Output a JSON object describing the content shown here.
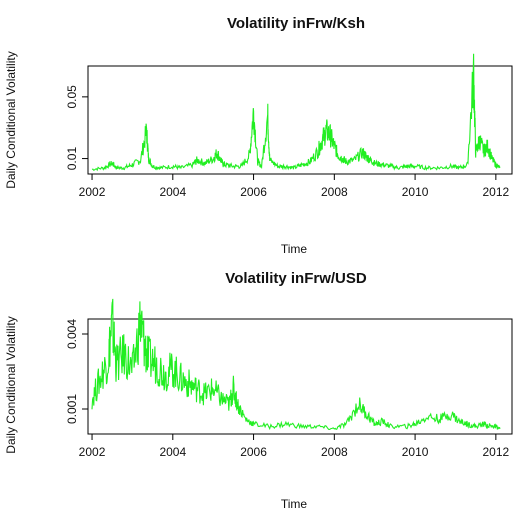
{
  "chart_data": [
    {
      "type": "line",
      "title": "Volatility inFrw/Ksh",
      "xlabel": "Time",
      "ylabel": "Daily Conditional Volatility",
      "xlim": [
        2001.9,
        2012.4
      ],
      "ylim": [
        0.0,
        0.07
      ],
      "x_ticks": [
        2002,
        2004,
        2006,
        2008,
        2010,
        2012
      ],
      "y_ticks": [
        0.01,
        0.05
      ],
      "y_tick_labels": [
        "0.01",
        "0.05"
      ],
      "line_color": "#22ee22",
      "series": [
        {
          "x": [
            2002.0,
            2002.3,
            2002.5,
            2002.6,
            2002.8,
            2003.0,
            2003.2,
            2003.35,
            2003.4,
            2003.5,
            2003.7,
            2004.0,
            2004.2,
            2004.5,
            2004.6,
            2004.8,
            2005.0,
            2005.1,
            2005.2,
            2005.3,
            2005.5,
            2005.7,
            2005.9,
            2006.0,
            2006.1,
            2006.2,
            2006.35,
            2006.4,
            2006.6,
            2006.8,
            2007.0,
            2007.2,
            2007.4,
            2007.6,
            2007.7,
            2007.8,
            2007.9,
            2008.0,
            2008.1,
            2008.2,
            2008.3,
            2008.5,
            2008.7,
            2008.8,
            2008.9,
            2009.0,
            2009.2,
            2009.4,
            2009.6,
            2009.8,
            2010.0,
            2010.3,
            2010.6,
            2010.9,
            2011.1,
            2011.3,
            2011.45,
            2011.5,
            2011.6,
            2011.7,
            2011.8,
            2011.9,
            2012.0,
            2012.1
          ],
          "y": [
            0.003,
            0.004,
            0.007,
            0.004,
            0.004,
            0.006,
            0.009,
            0.028,
            0.01,
            0.005,
            0.004,
            0.005,
            0.004,
            0.006,
            0.009,
            0.007,
            0.01,
            0.014,
            0.008,
            0.006,
            0.005,
            0.005,
            0.012,
            0.041,
            0.008,
            0.005,
            0.038,
            0.009,
            0.005,
            0.005,
            0.004,
            0.006,
            0.008,
            0.015,
            0.022,
            0.028,
            0.025,
            0.018,
            0.012,
            0.01,
            0.008,
            0.009,
            0.014,
            0.011,
            0.009,
            0.007,
            0.006,
            0.005,
            0.004,
            0.005,
            0.005,
            0.004,
            0.004,
            0.005,
            0.004,
            0.006,
            0.065,
            0.014,
            0.022,
            0.015,
            0.018,
            0.01,
            0.006,
            0.004
          ]
        }
      ]
    },
    {
      "type": "line",
      "title": "Volatility inFrw/USD",
      "xlabel": "Time",
      "ylabel": "Daily Conditional Volatility",
      "xlim": [
        2001.9,
        2012.4
      ],
      "ylim": [
        0.0,
        0.0046
      ],
      "x_ticks": [
        2002,
        2004,
        2006,
        2008,
        2010,
        2012
      ],
      "y_ticks": [
        0.001,
        0.004
      ],
      "y_tick_labels": [
        "0.001",
        "0.004"
      ],
      "line_color": "#22ee22",
      "series": [
        {
          "x": [
            2002.0,
            2002.2,
            2002.4,
            2002.5,
            2002.6,
            2002.8,
            2003.0,
            2003.2,
            2003.3,
            2003.4,
            2003.6,
            2003.8,
            2004.0,
            2004.2,
            2004.4,
            2004.6,
            2004.8,
            2005.0,
            2005.2,
            2005.4,
            2005.5,
            2005.6,
            2005.8,
            2006.0,
            2006.4,
            2006.8,
            2007.2,
            2007.6,
            2008.0,
            2008.3,
            2008.6,
            2008.8,
            2009.0,
            2009.2,
            2009.4,
            2009.8,
            2010.0,
            2010.3,
            2010.6,
            2010.9,
            2011.1,
            2011.3,
            2011.5,
            2011.7,
            2011.9,
            2012.0,
            2012.1
          ],
          "y": [
            0.0014,
            0.0022,
            0.003,
            0.0045,
            0.0028,
            0.0032,
            0.0025,
            0.0045,
            0.0035,
            0.003,
            0.0028,
            0.0024,
            0.0026,
            0.0022,
            0.002,
            0.0018,
            0.0016,
            0.0018,
            0.0014,
            0.0012,
            0.0018,
            0.0012,
            0.0006,
            0.0004,
            0.0003,
            0.0004,
            0.0003,
            0.0003,
            0.0002,
            0.0004,
            0.0012,
            0.0008,
            0.0004,
            0.0005,
            0.0003,
            0.0003,
            0.0004,
            0.0007,
            0.0006,
            0.0008,
            0.0005,
            0.0004,
            0.0003,
            0.0004,
            0.0003,
            0.0003,
            0.0002
          ]
        }
      ]
    }
  ]
}
